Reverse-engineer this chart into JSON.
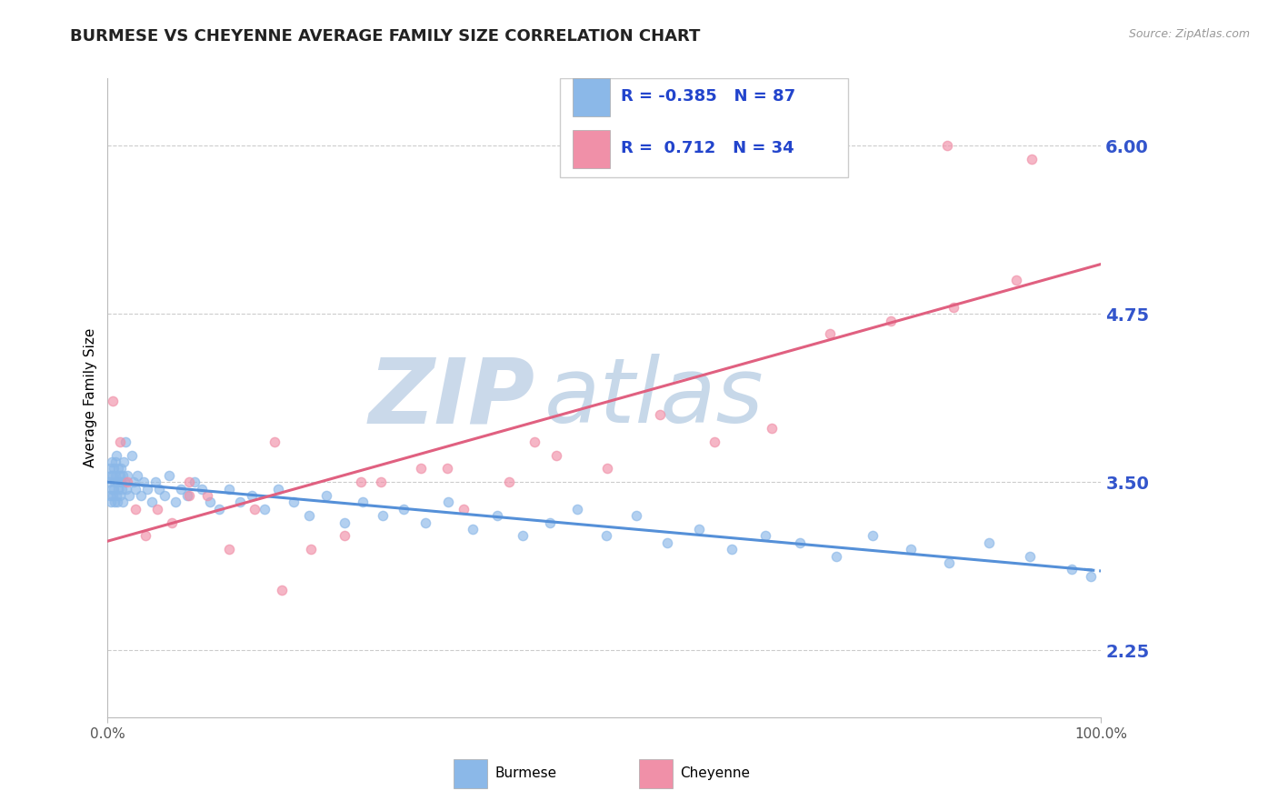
{
  "title": "BURMESE VS CHEYENNE AVERAGE FAMILY SIZE CORRELATION CHART",
  "source_text": "Source: ZipAtlas.com",
  "ylabel": "Average Family Size",
  "x_tick_labels": [
    "0.0%",
    "100.0%"
  ],
  "y_ticks": [
    2.25,
    3.5,
    4.75,
    6.0
  ],
  "xlim": [
    0.0,
    1.0
  ],
  "ylim": [
    1.75,
    6.5
  ],
  "burmese_color": "#8BB8E8",
  "cheyenne_color": "#F090A8",
  "burmese_line_color": "#5590D8",
  "cheyenne_line_color": "#E06080",
  "burmese_R": -0.385,
  "burmese_N": 87,
  "cheyenne_R": 0.712,
  "cheyenne_N": 34,
  "background_color": "#ffffff",
  "grid_color": "#cccccc",
  "legend_label_burmese": "Burmese",
  "legend_label_cheyenne": "Cheyenne",
  "burmese_x": [
    0.001,
    0.002,
    0.002,
    0.003,
    0.003,
    0.004,
    0.004,
    0.005,
    0.005,
    0.006,
    0.006,
    0.007,
    0.007,
    0.008,
    0.008,
    0.009,
    0.009,
    0.01,
    0.01,
    0.011,
    0.011,
    0.012,
    0.012,
    0.013,
    0.013,
    0.014,
    0.015,
    0.015,
    0.016,
    0.017,
    0.018,
    0.019,
    0.02,
    0.022,
    0.024,
    0.026,
    0.028,
    0.03,
    0.033,
    0.036,
    0.04,
    0.044,
    0.048,
    0.052,
    0.057,
    0.062,
    0.068,
    0.074,
    0.08,
    0.087,
    0.095,
    0.103,
    0.112,
    0.122,
    0.133,
    0.145,
    0.158,
    0.172,
    0.187,
    0.203,
    0.22,
    0.238,
    0.257,
    0.277,
    0.298,
    0.32,
    0.343,
    0.367,
    0.392,
    0.418,
    0.445,
    0.473,
    0.502,
    0.532,
    0.563,
    0.595,
    0.628,
    0.662,
    0.697,
    0.733,
    0.77,
    0.808,
    0.847,
    0.887,
    0.928,
    0.97,
    0.99
  ],
  "burmese_y": [
    3.5,
    3.6,
    3.4,
    3.55,
    3.35,
    3.65,
    3.45,
    3.55,
    3.4,
    3.6,
    3.45,
    3.5,
    3.35,
    3.55,
    3.65,
    3.4,
    3.7,
    3.5,
    3.35,
    3.6,
    3.45,
    3.55,
    3.4,
    3.5,
    3.6,
    3.45,
    3.55,
    3.35,
    3.65,
    3.5,
    3.8,
    3.45,
    3.55,
    3.4,
    3.7,
    3.5,
    3.45,
    3.55,
    3.4,
    3.5,
    3.45,
    3.35,
    3.5,
    3.45,
    3.4,
    3.55,
    3.35,
    3.45,
    3.4,
    3.5,
    3.45,
    3.35,
    3.3,
    3.45,
    3.35,
    3.4,
    3.3,
    3.45,
    3.35,
    3.25,
    3.4,
    3.2,
    3.35,
    3.25,
    3.3,
    3.2,
    3.35,
    3.15,
    3.25,
    3.1,
    3.2,
    3.3,
    3.1,
    3.25,
    3.05,
    3.15,
    3.0,
    3.1,
    3.05,
    2.95,
    3.1,
    3.0,
    2.9,
    3.05,
    2.95,
    2.85,
    2.8
  ],
  "cheyenne_x": [
    0.005,
    0.012,
    0.02,
    0.028,
    0.038,
    0.05,
    0.065,
    0.082,
    0.1,
    0.122,
    0.148,
    0.175,
    0.205,
    0.238,
    0.275,
    0.315,
    0.358,
    0.404,
    0.452,
    0.503,
    0.556,
    0.611,
    0.668,
    0.727,
    0.788,
    0.851,
    0.915,
    0.082,
    0.168,
    0.255,
    0.342,
    0.43,
    0.845,
    0.93
  ],
  "cheyenne_y": [
    4.1,
    3.8,
    3.5,
    3.3,
    3.1,
    3.3,
    3.2,
    3.5,
    3.4,
    3.0,
    3.3,
    2.7,
    3.0,
    3.1,
    3.5,
    3.6,
    3.3,
    3.5,
    3.7,
    3.6,
    4.0,
    3.8,
    3.9,
    4.6,
    4.7,
    4.8,
    5.0,
    3.4,
    3.8,
    3.5,
    3.6,
    3.8,
    6.0,
    5.9
  ],
  "title_fontsize": 13,
  "source_fontsize": 9,
  "ylabel_fontsize": 11,
  "ytick_fontsize": 14,
  "xtick_fontsize": 11,
  "legend_fontsize": 13,
  "scatter_size": 55,
  "scatter_alpha": 0.65,
  "line_width": 2.2,
  "watermark_zip_color": "#C8D4E8",
  "watermark_atlas_color": "#B8C8E0",
  "ytick_color": "#3355CC"
}
